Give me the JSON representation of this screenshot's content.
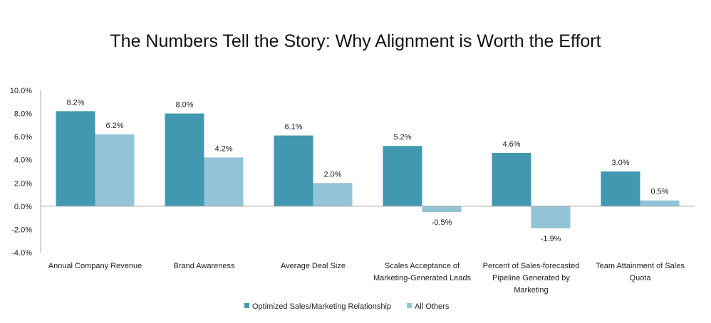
{
  "chart_data": {
    "type": "bar",
    "title": "The Numbers Tell the Story: Why Alignment is Worth the Effort",
    "categories": [
      "Annual Company Revenue",
      "Brand Awareness",
      "Average Deal Size",
      "Scales Acceptance of Marketing-Generated Leads",
      "Percent of Sales-forecasted Pipeline Generated by Marketing",
      "Team Attainment of Sales Quota"
    ],
    "category_lines": [
      [
        "Annual Company Revenue"
      ],
      [
        "Brand Awareness"
      ],
      [
        "Average Deal Size"
      ],
      [
        "Scales Acceptance of",
        "Marketing-Generated Leads"
      ],
      [
        "Percent of Sales-forecasted",
        "Pipeline Generated by",
        "Marketing"
      ],
      [
        "Team Attainment of Sales",
        "Quota"
      ]
    ],
    "series": [
      {
        "name": "Optimized Sales/Marketing Relationship",
        "color": "#4198b0",
        "values": [
          8.2,
          8.0,
          6.1,
          5.2,
          4.6,
          3.0
        ],
        "labels": [
          "8.2%",
          "8.0%",
          "6.1%",
          "5.2%",
          "4.6%",
          "3.0%"
        ]
      },
      {
        "name": "All Others",
        "color": "#93c3d6",
        "values": [
          6.2,
          4.2,
          2.0,
          -0.5,
          -1.9,
          0.5
        ],
        "labels": [
          "6.2%",
          "4.2%",
          "2.0%",
          "-0.5%",
          "-1.9%",
          "0.5%"
        ]
      }
    ],
    "ylim": [
      -4.0,
      10.0
    ],
    "yticks": [
      10.0,
      8.0,
      6.0,
      4.0,
      2.0,
      0.0,
      -2.0,
      -4.0
    ],
    "ytick_labels": [
      "10.0%",
      "8.0%",
      "6.0%",
      "4.0%",
      "2.0%",
      "0.0%",
      "-2.0%",
      "-4.0%"
    ],
    "legend_position": "bottom",
    "grid": false
  }
}
